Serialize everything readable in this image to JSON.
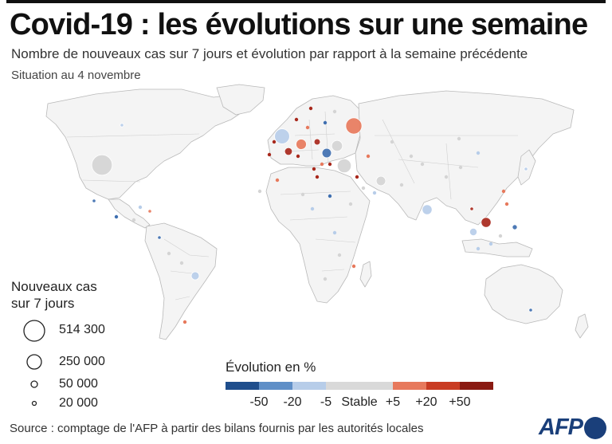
{
  "title": "Covid-19 : les évolutions sur une semaine",
  "subtitle": "Nombre de nouveaux cas sur 7 jours et évolution par rapport à la semaine précédente",
  "dateline": "Situation au 4 novembre",
  "size_legend": {
    "title": "Nouveaux cas sur 7 jours",
    "items": [
      {
        "label": "514 300",
        "value": 514300
      },
      {
        "label": "250 000",
        "value": 250000
      },
      {
        "label": "50 000",
        "value": 50000
      },
      {
        "label": "20 000",
        "value": 20000
      }
    ]
  },
  "color_legend": {
    "title": "Évolution en %",
    "colors": [
      "#1f4e8c",
      "#5f8fc7",
      "#b7cde9",
      "#d9d9d9",
      "#d9d9d9",
      "#e7795c",
      "#c93c23",
      "#8a1a12"
    ],
    "labels": [
      "-50",
      "-20",
      "-5",
      "Stable",
      "+5",
      "+20",
      "+50"
    ]
  },
  "source": "Source : comptage de l'AFP à partir des bilans fournis par les autorités locales",
  "logo": "AFP",
  "colors": {
    "land": "#f4f4f4",
    "border": "#c8c8c8",
    "strong_decrease": "#3f6fb0",
    "decrease": "#b7cde9",
    "stable": "#d4d4d4",
    "increase": "#e7795c",
    "strong_increase": "#a8281c"
  },
  "map_data": {
    "bubbles": [
      {
        "place": "États-Unis",
        "cases": 430000,
        "trend": "stable"
      },
      {
        "place": "Canada",
        "cases": 2000,
        "trend": "decrease"
      },
      {
        "place": "Mexique",
        "cases": 2500,
        "trend": "strong_decrease"
      },
      {
        "place": "Cuba",
        "cases": 800,
        "trend": "increase"
      },
      {
        "place": "Colombie",
        "cases": 1500,
        "trend": "strong_decrease"
      },
      {
        "place": "Brésil",
        "cases": 65000,
        "trend": "decrease"
      },
      {
        "place": "Royaume-Uni",
        "cases": 230000,
        "trend": "decrease"
      },
      {
        "place": "France",
        "cases": 60000,
        "trend": "strong_increase"
      },
      {
        "place": "Allemagne",
        "cases": 110000,
        "trend": "increase"
      },
      {
        "place": "Pologne",
        "cases": 40000,
        "trend": "strong_increase"
      },
      {
        "place": "Russie",
        "cases": 270000,
        "trend": "increase"
      },
      {
        "place": "Ukraine",
        "cases": 120000,
        "trend": "stable"
      },
      {
        "place": "Roumanie",
        "cases": 90000,
        "trend": "strong_decrease"
      },
      {
        "place": "Turquie",
        "cases": 200000,
        "trend": "stable"
      },
      {
        "place": "Iran",
        "cases": 90000,
        "trend": "stable"
      },
      {
        "place": "Inde",
        "cases": 100000,
        "trend": "decrease"
      },
      {
        "place": "Chine",
        "cases": 3000,
        "trend": "strong_increase"
      },
      {
        "place": "Vietnam",
        "cases": 100000,
        "trend": "strong_increase"
      },
      {
        "place": "Thaïlande",
        "cases": 55000,
        "trend": "decrease"
      },
      {
        "place": "Philippines",
        "cases": 25000,
        "trend": "strong_decrease"
      },
      {
        "place": "Japon",
        "cases": 2000,
        "trend": "decrease"
      },
      {
        "place": "Australie",
        "cases": 2000,
        "trend": "strong_decrease"
      }
    ]
  }
}
